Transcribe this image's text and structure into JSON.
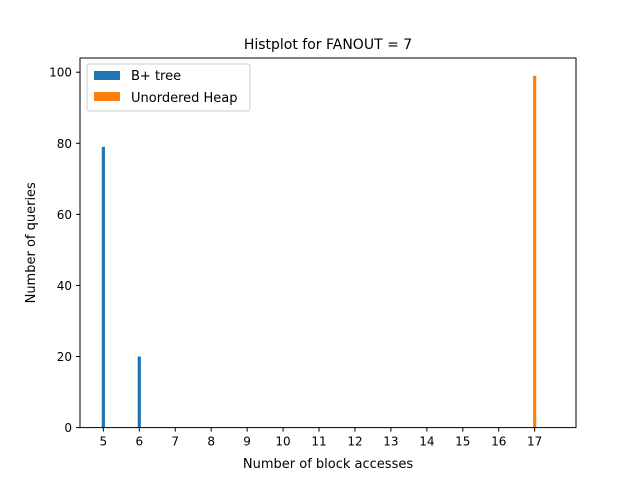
{
  "chart_data": {
    "type": "bar",
    "title": "Histplot for FANOUT = 7",
    "xlabel": "Number of block accesses",
    "ylabel": "Number of queries",
    "xticks": [
      5,
      6,
      7,
      8,
      9,
      10,
      11,
      12,
      13,
      14,
      15,
      16,
      17
    ],
    "yticks": [
      0,
      20,
      40,
      60,
      80,
      100
    ],
    "xlim": [
      4.35,
      18.15
    ],
    "ylim": [
      0,
      104
    ],
    "grid": false,
    "legend_position": "top-left",
    "series": [
      {
        "name": "B+ tree",
        "color": "#1f77b4",
        "points": [
          {
            "x": 5,
            "y": 79
          },
          {
            "x": 6,
            "y": 20
          }
        ]
      },
      {
        "name": "Unordered Heap",
        "color": "#ff7f0e",
        "points": [
          {
            "x": 17,
            "y": 99
          }
        ]
      }
    ]
  }
}
